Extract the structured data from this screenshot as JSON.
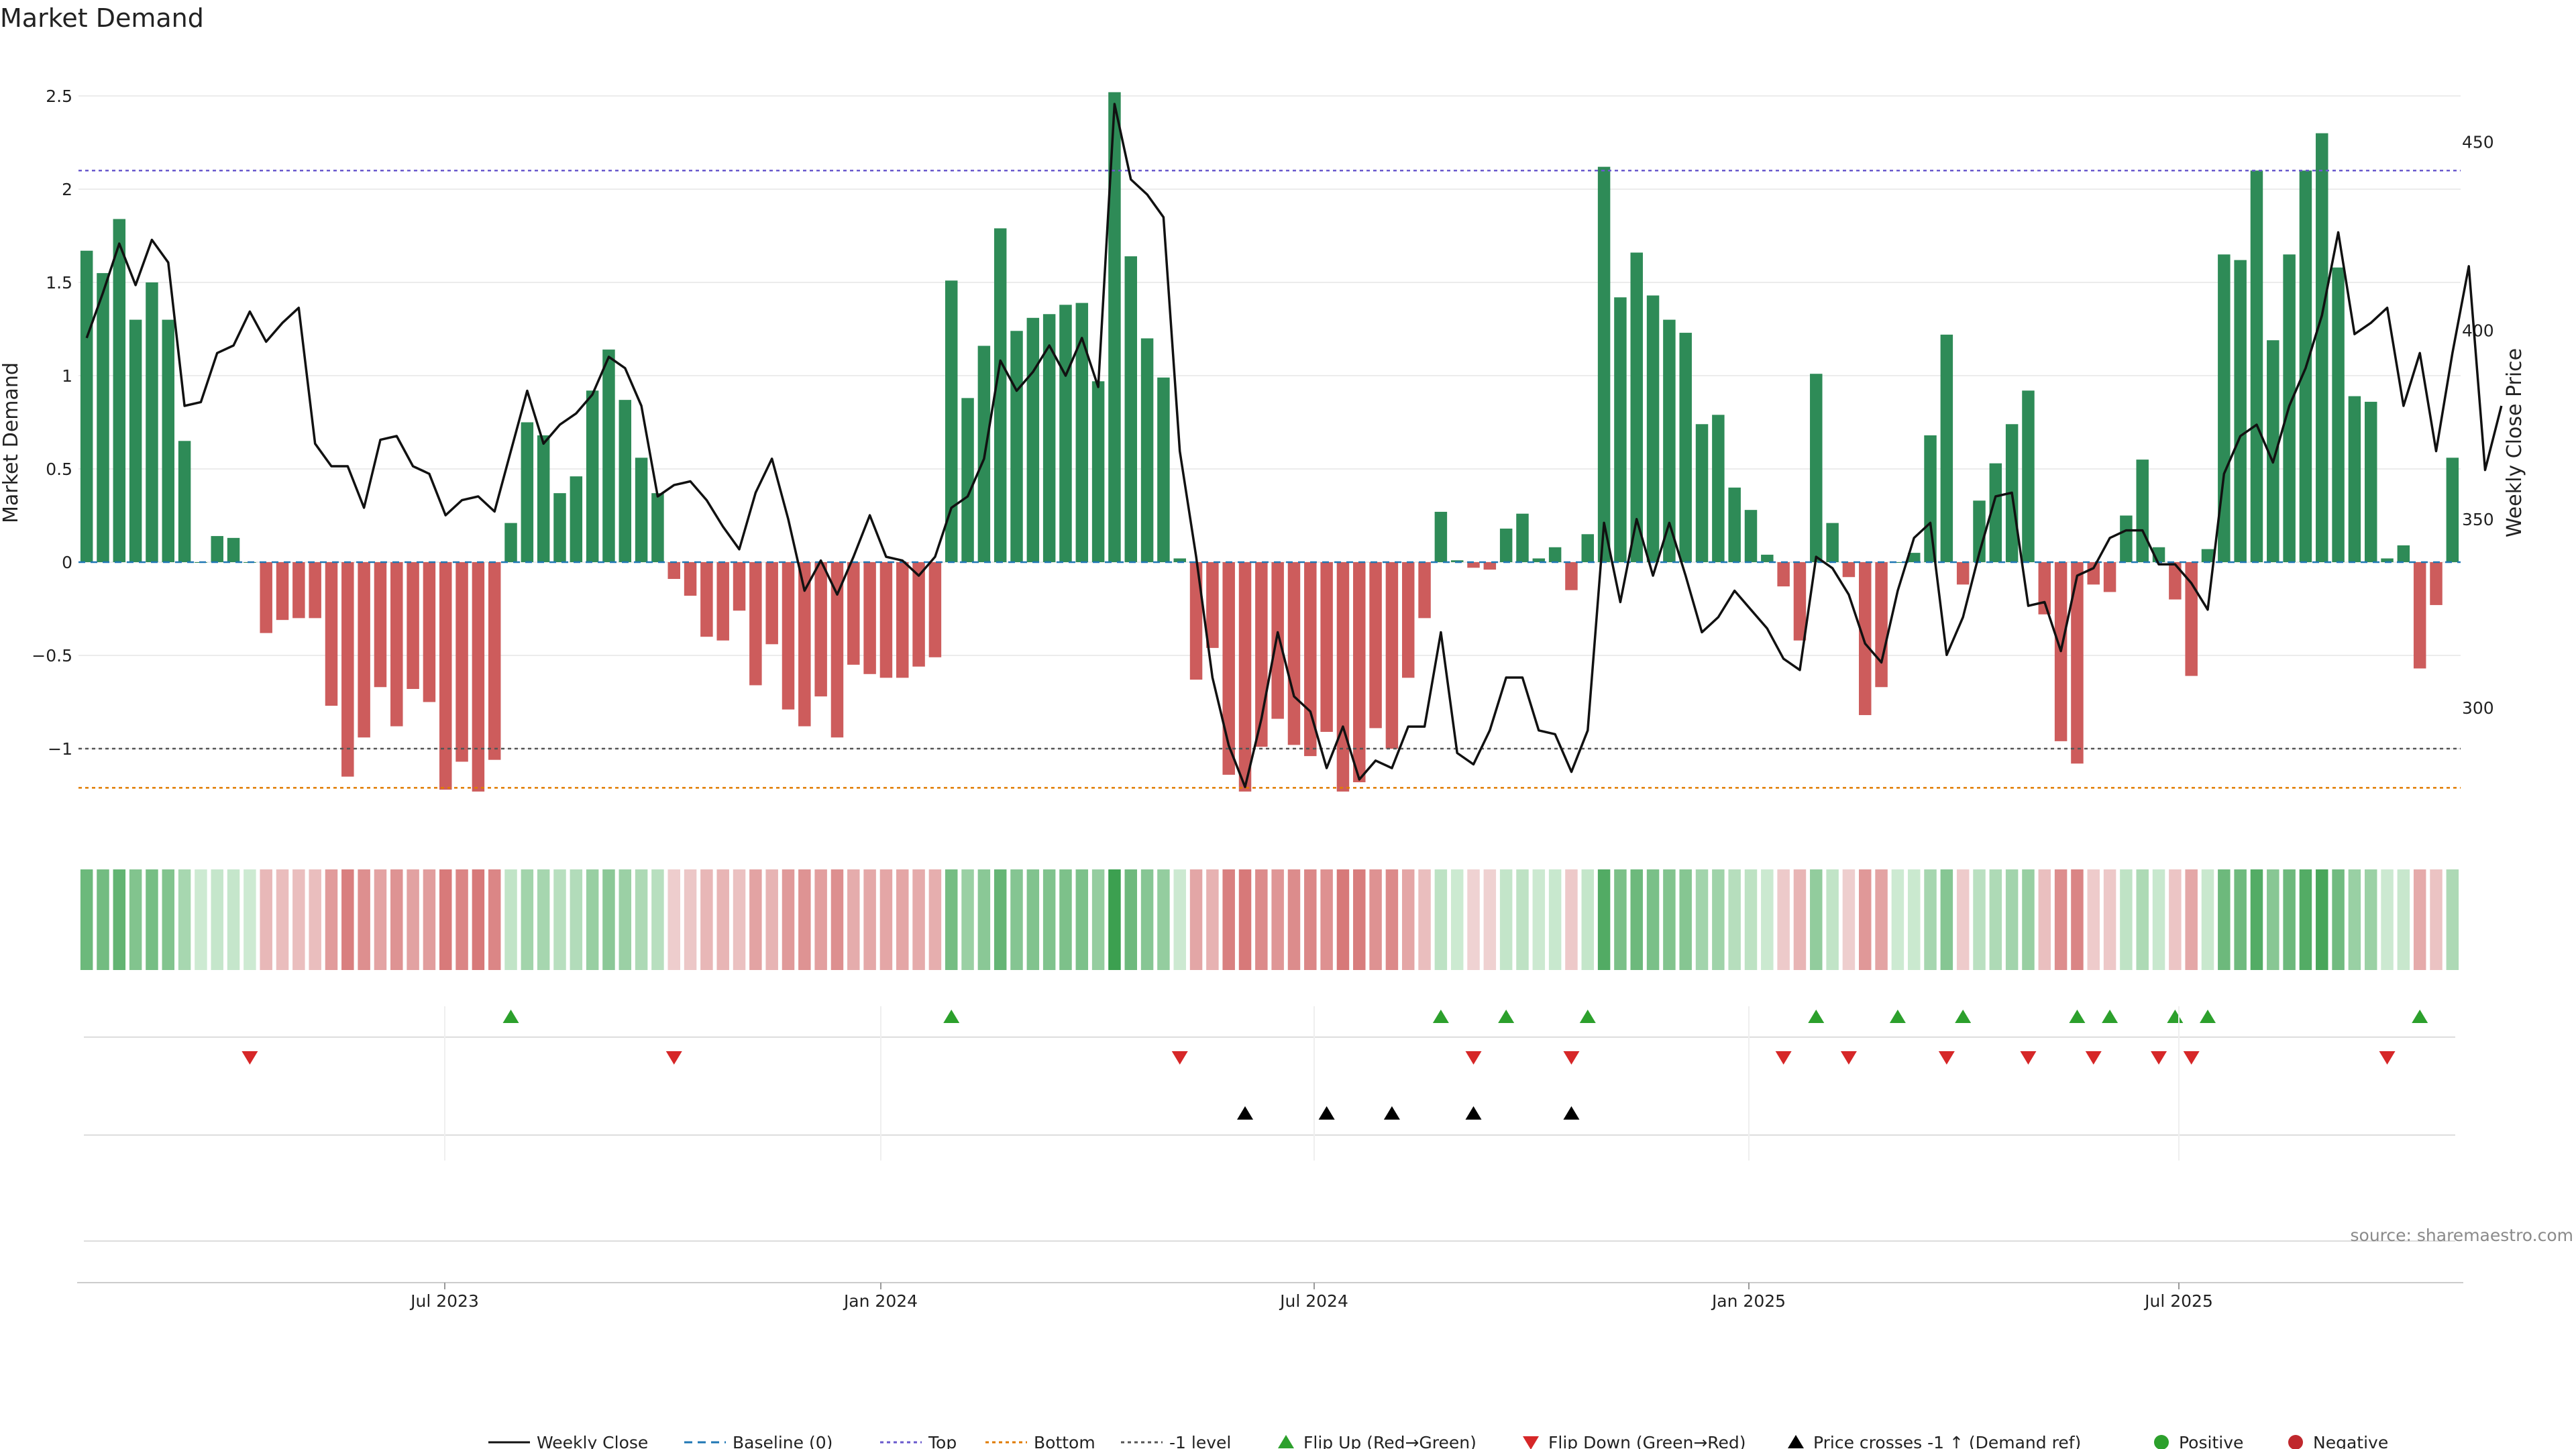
{
  "chart_data": {
    "type": "bar",
    "title": "Market Demand",
    "ylabel": "Market Demand",
    "y2label": "Weekly Close Price",
    "ylim": [
      -1.45,
      2.5
    ],
    "y2lim": [
      278,
      460
    ],
    "y_ticks": [
      "2.5",
      "2",
      "1.5",
      "1",
      "0.5",
      "0",
      "−0.5",
      "−1"
    ],
    "y2_ticks": [
      "450",
      "400",
      "350",
      "300"
    ],
    "x_tick_labels": [
      "Jul 2023",
      "Jan 2024",
      "Jul 2024",
      "Jan 2025",
      "Jul 2025"
    ],
    "levels": {
      "top": 2.1,
      "baseline": 0,
      "minus_one": -1.0,
      "bottom": -1.21
    },
    "series": [
      {
        "name": "Market Demand",
        "values": [
          1.67,
          1.55,
          1.84,
          1.3,
          1.5,
          1.3,
          0.65,
          0.0,
          0.14,
          0.13,
          0.0,
          -0.38,
          -0.31,
          -0.3,
          -0.3,
          -0.77,
          -1.15,
          -0.94,
          -0.67,
          -0.88,
          -0.68,
          -0.75,
          -1.22,
          -1.07,
          -1.23,
          -1.06,
          0.21,
          0.75,
          0.68,
          0.37,
          0.46,
          0.92,
          1.14,
          0.87,
          0.56,
          0.37,
          -0.09,
          -0.18,
          -0.4,
          -0.42,
          -0.26,
          -0.66,
          -0.44,
          -0.79,
          -0.88,
          -0.72,
          -0.94,
          -0.55,
          -0.6,
          -0.62,
          -0.62,
          -0.56,
          -0.51,
          1.51,
          0.88,
          1.16,
          1.79,
          1.24,
          1.31,
          1.33,
          1.38,
          1.39,
          0.97,
          2.52,
          1.64,
          1.2,
          0.99,
          0.02,
          -0.63,
          -0.46,
          -1.14,
          -1.23,
          -0.99,
          -0.84,
          -0.98,
          -1.04,
          -0.91,
          -1.23,
          -1.18,
          -0.89,
          -1.0,
          -0.62,
          -0.3,
          0.27,
          0.01,
          -0.03,
          -0.04,
          0.18,
          0.26,
          0.02,
          0.08,
          -0.15,
          0.15,
          2.12,
          1.42,
          1.66,
          1.43,
          1.3,
          1.23,
          0.74,
          0.79,
          0.4,
          0.28,
          0.04,
          -0.13,
          -0.42,
          1.01,
          0.21,
          -0.08,
          -0.82,
          -0.67,
          0.0,
          0.05,
          0.68,
          1.22,
          -0.12,
          0.33,
          0.53,
          0.74,
          0.92,
          -0.28,
          -0.96,
          -1.08,
          -0.12,
          -0.16,
          0.25,
          0.55,
          0.08,
          -0.2,
          -0.61,
          0.07,
          1.65,
          1.62,
          2.1,
          1.19,
          1.65,
          2.1,
          2.3,
          1.58,
          0.89,
          0.86,
          0.02,
          0.09,
          -0.57,
          -0.23,
          0.56
        ]
      },
      {
        "name": "Weekly Close",
        "values": [
          398,
          410,
          423,
          412,
          424,
          418,
          380,
          381,
          394,
          396,
          405,
          397,
          402,
          406,
          370,
          364,
          364,
          353,
          371,
          372,
          364,
          362,
          351,
          355,
          356,
          352,
          368,
          384,
          370,
          375,
          378,
          383,
          393,
          390,
          380,
          356,
          359,
          360,
          355,
          348,
          342,
          357,
          366,
          350,
          331,
          339,
          330,
          340,
          351,
          340,
          339,
          335,
          340,
          353,
          356,
          366,
          392,
          384,
          389,
          396,
          388,
          398,
          385,
          460,
          440,
          436,
          430,
          368,
          340,
          308,
          290,
          279,
          297,
          320,
          303,
          299,
          284,
          295,
          281,
          286,
          284,
          295,
          295,
          320,
          288,
          285,
          294,
          308,
          308,
          294,
          293,
          283,
          294,
          349,
          328,
          350,
          335,
          349,
          335,
          320,
          324,
          331,
          326,
          321,
          313,
          310,
          340,
          337,
          330,
          317,
          312,
          331,
          345,
          349,
          314,
          324,
          341,
          356,
          357,
          327,
          328,
          315,
          335,
          337,
          345,
          347,
          347,
          338,
          338,
          333,
          326,
          362,
          372,
          375,
          365,
          380,
          390,
          404,
          426,
          399,
          402,
          406,
          380,
          394,
          368,
          394,
          417,
          363,
          380
        ]
      }
    ],
    "heat_strip": {
      "name": "Demand shading"
    },
    "event_rows": [
      {
        "name": "Flip Up (Red→Green)",
        "indices": [
          26,
          53,
          83,
          87,
          92,
          106,
          111,
          115,
          122,
          124,
          128,
          130,
          143
        ]
      },
      {
        "name": "Flip Down (Green→Red)",
        "indices": [
          10,
          36,
          67,
          85,
          91,
          104,
          108,
          114,
          119,
          123,
          127,
          129,
          141
        ]
      },
      {
        "name": "Price crosses -1 ↑ (Demand ref)",
        "indices": [
          71,
          76,
          80,
          85,
          91
        ]
      }
    ]
  },
  "legend": [
    {
      "label": "Weekly Close",
      "kind": "line",
      "color": "#111111"
    },
    {
      "label": "Baseline (0)",
      "kind": "dash",
      "color": "#1f77b4"
    },
    {
      "label": "Top",
      "kind": "dot",
      "color": "#6a5acd"
    },
    {
      "label": "Bottom",
      "kind": "dot",
      "color": "#e07b00"
    },
    {
      "label": "-1 level",
      "kind": "dot",
      "color": "#555555"
    },
    {
      "label": "Flip Up (Red→Green)",
      "kind": "tri-up",
      "color": "#2ca02c"
    },
    {
      "label": "Flip Down (Green→Red)",
      "kind": "tri-down",
      "color": "#d62728"
    },
    {
      "label": "Price crosses -1 ↑ (Demand ref)",
      "kind": "tri-up",
      "color": "#000000"
    },
    {
      "label": "Positive",
      "kind": "circle",
      "color": "#2ca02c"
    },
    {
      "label": "Negative",
      "kind": "circle",
      "color": "#c0282d"
    }
  ],
  "source": "source: sharemaestro.com",
  "colors": {
    "positive": "#2e8b57",
    "negative": "#cd5c5c",
    "price": "#111111"
  }
}
